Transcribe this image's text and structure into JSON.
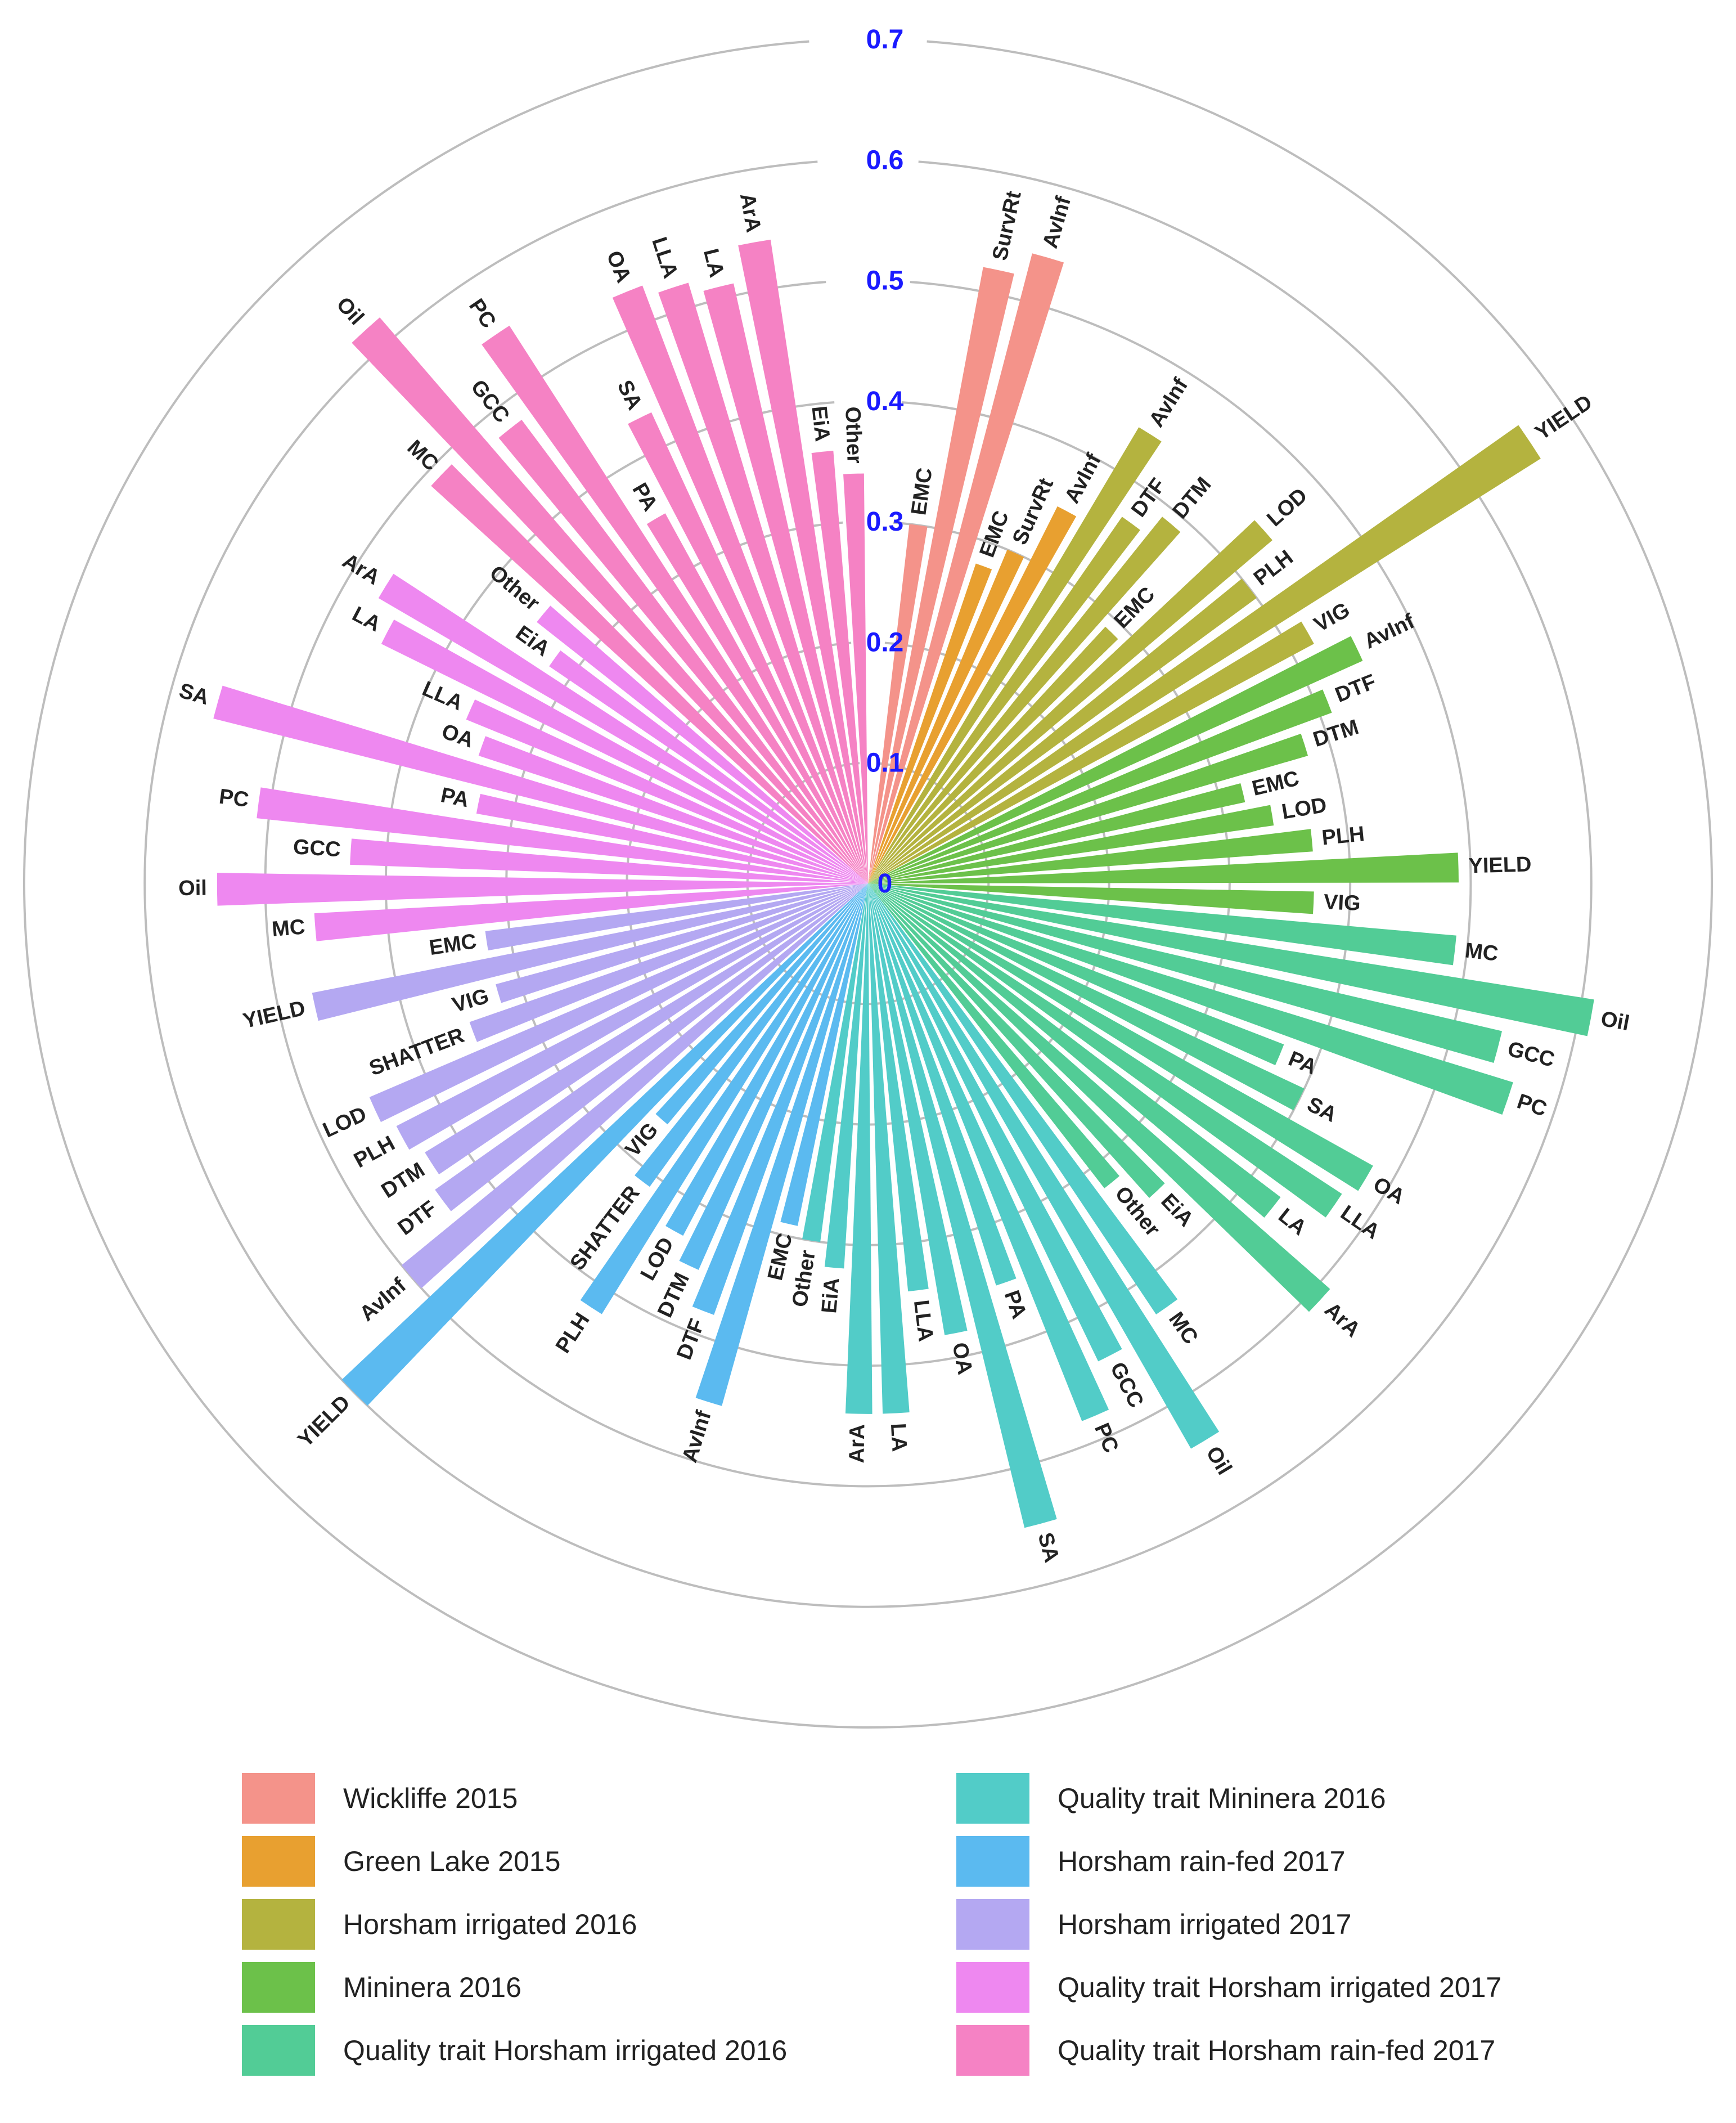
{
  "chart_data": {
    "type": "bar",
    "subtype": "circular",
    "title": "",
    "radial_axis": {
      "range": [
        0,
        0.7
      ],
      "ticks": [
        0,
        0.1,
        0.2,
        0.3,
        0.4,
        0.5,
        0.6,
        0.7
      ],
      "tick_labels": [
        "0",
        "0.1",
        "0.2",
        "0.3",
        "0.4",
        "0.5",
        "0.6",
        "0.7"
      ],
      "tick_color": "#1a1aff"
    },
    "legend_position": "bottom",
    "series": [
      {
        "name": "Wickliffe 2015",
        "color": "#F4938A",
        "categories": [
          "EMC",
          "SurvRt",
          "AvInf"
        ],
        "values": [
          0.3,
          0.52,
          0.54
        ]
      },
      {
        "name": "Green Lake 2015",
        "color": "#E8A030",
        "categories": [
          "EMC",
          "SurvRt",
          "AvInf"
        ],
        "values": [
          0.28,
          0.3,
          0.35
        ]
      },
      {
        "name": "Horsham irrigated 2016",
        "color": "#B4B33F",
        "categories": [
          "AvInf",
          "DTF",
          "DTM",
          "EMC",
          "LOD",
          "PLH",
          "YIELD",
          "VIG"
        ],
        "values": [
          0.44,
          0.37,
          0.39,
          0.29,
          0.44,
          0.4,
          0.66,
          0.42
        ]
      },
      {
        "name": "Mininera 2016",
        "color": "#6CC14A",
        "categories": [
          "AvInf",
          "DTF",
          "DTM",
          "EMC",
          "LOD",
          "PLH",
          "YIELD",
          "VIG"
        ],
        "values": [
          0.45,
          0.41,
          0.38,
          0.32,
          0.34,
          0.37,
          0.49,
          0.37
        ]
      },
      {
        "name": "Quality trait Horsham irrigated 2016",
        "color": "#52CC96",
        "categories": [
          "MC",
          "Oil",
          "GCC",
          "PC",
          "PA",
          "SA",
          "OA",
          "LLA",
          "LA",
          "ArA",
          "EiA",
          "Other"
        ],
        "values": [
          0.49,
          0.61,
          0.54,
          0.56,
          0.37,
          0.4,
          0.48,
          0.47,
          0.43,
          0.51,
          0.35,
          0.32
        ]
      },
      {
        "name": "Quality trait Mininera 2016",
        "color": "#52CCC8",
        "categories": [
          "MC",
          "Oil",
          "GCC",
          "PC",
          "PA",
          "SA",
          "OA",
          "LLA",
          "LA",
          "ArA",
          "EiA",
          "Other"
        ],
        "values": [
          0.43,
          0.54,
          0.44,
          0.48,
          0.35,
          0.55,
          0.38,
          0.34,
          0.44,
          0.44,
          0.32,
          0.3
        ]
      },
      {
        "name": "Horsham rain-fed 2017",
        "color": "#5BBAF0",
        "categories": [
          "EMC",
          "AvInf",
          "DTF",
          "DTM",
          "LOD",
          "PLH",
          "SHATTER",
          "VIG",
          "YIELD"
        ],
        "values": [
          0.29,
          0.45,
          0.38,
          0.35,
          0.33,
          0.42,
          0.31,
          0.26,
          0.6
        ]
      },
      {
        "name": "Horsham irrigated 2017",
        "color": "#B4A8F2",
        "categories": [
          "AvInf",
          "DTF",
          "DTM",
          "PLH",
          "LOD",
          "SHATTER",
          "VIG",
          "YIELD",
          "EMC"
        ],
        "values": [
          0.5,
          0.44,
          0.43,
          0.44,
          0.45,
          0.35,
          0.32,
          0.47,
          0.32
        ]
      },
      {
        "name": "Quality trait Horsham irrigated 2017",
        "color": "#EE88F0",
        "categories": [
          "MC",
          "Oil",
          "GCC",
          "PC",
          "PA",
          "SA",
          "OA",
          "LLA",
          "LA",
          "ArA",
          "EiA",
          "Other"
        ],
        "values": [
          0.46,
          0.54,
          0.43,
          0.51,
          0.33,
          0.56,
          0.34,
          0.36,
          0.45,
          0.47,
          0.32,
          0.35
        ]
      },
      {
        "name": "Quality trait Horsham rain-fed 2017",
        "color": "#F582C4",
        "categories": [
          "MC",
          "Oil",
          "GCC",
          "PC",
          "PA",
          "SA",
          "OA",
          "LLA",
          "LA",
          "ArA",
          "EiA",
          "Other"
        ],
        "values": [
          0.49,
          0.62,
          0.48,
          0.55,
          0.35,
          0.43,
          0.53,
          0.52,
          0.51,
          0.54,
          0.36,
          0.34
        ]
      }
    ],
    "legend": {
      "left": [
        "Wickliffe 2015",
        "Green Lake 2015",
        "Horsham irrigated 2016",
        "Mininera 2016",
        "Quality trait Horsham irrigated 2016"
      ],
      "right": [
        "Quality trait Mininera 2016",
        "Horsham rain-fed 2017",
        "Horsham irrigated 2017",
        "Quality trait Horsham irrigated 2017",
        "Quality trait Horsham rain-fed 2017"
      ]
    }
  },
  "legend_items": [
    {
      "label": "Wickliffe 2015",
      "color": "#F4938A"
    },
    {
      "label": "Green Lake 2015",
      "color": "#E8A030"
    },
    {
      "label": "Horsham irrigated 2016",
      "color": "#B4B33F"
    },
    {
      "label": "Mininera 2016",
      "color": "#6CC14A"
    },
    {
      "label": "Quality trait Horsham irrigated 2016",
      "color": "#52CC96"
    },
    {
      "label": "Quality trait Mininera 2016",
      "color": "#52CCC8"
    },
    {
      "label": "Horsham rain-fed 2017",
      "color": "#5BBAF0"
    },
    {
      "label": "Horsham irrigated 2017",
      "color": "#B4A8F2"
    },
    {
      "label": "Quality trait Horsham irrigated 2017",
      "color": "#EE88F0"
    },
    {
      "label": "Quality trait Horsham rain-fed 2017",
      "color": "#F582C4"
    }
  ]
}
